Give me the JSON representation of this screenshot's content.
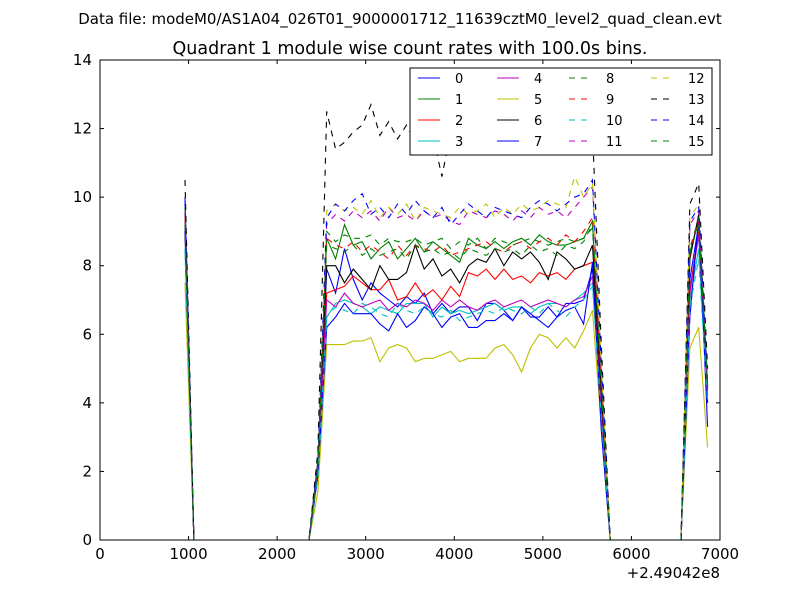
{
  "chart_data": {
    "type": "line",
    "suptitle": "Data file: modeM0/AS1A04_026T01_9000001712_11639cztM0_level2_quad_clean.evt",
    "title": "Quadrant 1 module wise count rates with 100.0s bins.",
    "xlabel": "",
    "ylabel": "",
    "x_offset_label": "+2.49042e8",
    "xlim": [
      0,
      7000
    ],
    "ylim": [
      0,
      14
    ],
    "xticks": [
      0,
      1000,
      2000,
      3000,
      4000,
      5000,
      6000,
      7000
    ],
    "yticks": [
      0,
      2,
      4,
      6,
      8,
      10,
      12,
      14
    ],
    "grid": false,
    "legend_position": "top-right",
    "legend_columns": 4,
    "x": [
      960,
      1060,
      2360,
      2460,
      2560,
      2660,
      2760,
      2860,
      2960,
      3060,
      3160,
      3260,
      3360,
      3460,
      3560,
      3660,
      3760,
      3860,
      3960,
      4060,
      4160,
      4260,
      4360,
      4460,
      4560,
      4660,
      4760,
      4860,
      4960,
      5060,
      5160,
      5260,
      5360,
      5460,
      5560,
      5660,
      5760,
      6560,
      6660,
      6760,
      6860
    ],
    "series": [
      {
        "name": "0",
        "color": "#0000ff",
        "dash": "solid",
        "values": [
          10.0,
          0,
          0,
          1.9,
          7.9,
          7.2,
          8.5,
          7.6,
          7.0,
          7.5,
          7.2,
          7.0,
          6.8,
          7.1,
          6.9,
          7.2,
          6.6,
          6.9,
          6.6,
          6.8,
          6.8,
          6.4,
          6.9,
          6.9,
          6.7,
          6.4,
          6.8,
          6.5,
          6.5,
          6.8,
          6.5,
          6.9,
          6.9,
          7.0,
          7.9,
          3.5,
          0,
          0,
          7.6,
          9.2,
          4.0
        ]
      },
      {
        "name": "1",
        "color": "#008000",
        "dash": "solid",
        "values": [
          9.3,
          0,
          0,
          2.1,
          8.8,
          8.2,
          9.2,
          8.6,
          8.7,
          8.2,
          8.5,
          8.7,
          8.2,
          8.5,
          8.8,
          8.4,
          8.7,
          8.5,
          8.3,
          8.1,
          8.8,
          8.6,
          8.5,
          8.7,
          8.5,
          8.7,
          8.8,
          8.6,
          8.9,
          8.7,
          8.6,
          8.6,
          8.7,
          8.8,
          9.3,
          4.5,
          0,
          0,
          8.4,
          9.3,
          4.4
        ]
      },
      {
        "name": "2",
        "color": "#ff0000",
        "dash": "solid",
        "values": [
          9.5,
          0,
          0,
          2.0,
          7.2,
          7.3,
          7.4,
          7.7,
          7.5,
          7.3,
          7.3,
          7.6,
          7.0,
          7.1,
          7.5,
          7.1,
          7.3,
          7.0,
          7.4,
          7.1,
          7.8,
          7.7,
          7.9,
          7.6,
          7.9,
          7.6,
          7.7,
          7.5,
          7.8,
          7.7,
          7.8,
          7.6,
          7.9,
          8.0,
          8.1,
          4.1,
          0,
          0,
          7.3,
          9.0,
          4.2
        ]
      },
      {
        "name": "3",
        "color": "#00bfbf",
        "dash": "solid",
        "values": [
          8.5,
          0,
          0,
          1.9,
          6.5,
          6.9,
          7.0,
          6.9,
          6.8,
          6.6,
          6.8,
          6.7,
          6.6,
          6.9,
          6.9,
          6.9,
          6.5,
          6.8,
          6.6,
          6.7,
          6.6,
          6.7,
          6.8,
          6.9,
          6.7,
          6.8,
          6.8,
          6.6,
          6.8,
          6.9,
          6.9,
          6.8,
          7.0,
          7.2,
          7.5,
          3.7,
          0,
          0,
          7.0,
          8.5,
          4.1
        ]
      },
      {
        "name": "4",
        "color": "#bf00bf",
        "dash": "solid",
        "values": [
          9.0,
          0,
          0,
          2.0,
          7.0,
          6.8,
          7.2,
          6.9,
          6.8,
          6.9,
          7.0,
          6.7,
          6.9,
          6.8,
          7.0,
          6.9,
          6.7,
          7.0,
          6.8,
          7.0,
          6.8,
          6.7,
          6.9,
          7.0,
          6.8,
          6.9,
          7.0,
          6.8,
          6.9,
          7.0,
          6.9,
          6.8,
          7.0,
          7.1,
          7.7,
          3.8,
          0,
          0,
          7.2,
          8.9,
          4.2
        ]
      },
      {
        "name": "5",
        "color": "#bfbf00",
        "dash": "solid",
        "values": [
          7.5,
          0,
          0,
          1.4,
          5.7,
          5.7,
          5.7,
          5.8,
          5.8,
          5.9,
          5.2,
          5.6,
          5.7,
          5.6,
          5.2,
          5.3,
          5.3,
          5.4,
          5.5,
          5.2,
          5.3,
          5.3,
          5.3,
          5.6,
          5.7,
          5.4,
          4.9,
          5.6,
          6.0,
          5.9,
          5.6,
          5.9,
          5.6,
          6.1,
          6.7,
          3.3,
          0,
          0,
          5.6,
          6.2,
          2.7
        ]
      },
      {
        "name": "6",
        "color": "#000000",
        "dash": "solid",
        "values": [
          9.0,
          0,
          0,
          2.3,
          8.0,
          8.0,
          7.5,
          7.9,
          7.6,
          7.3,
          8.0,
          7.6,
          7.6,
          7.8,
          8.6,
          7.9,
          8.2,
          7.7,
          7.9,
          7.5,
          8.0,
          8.2,
          8.1,
          8.5,
          8.0,
          8.4,
          8.2,
          8.4,
          8.1,
          7.6,
          8.4,
          8.2,
          7.9,
          8.0,
          8.6,
          4.3,
          0,
          0,
          8.2,
          9.5,
          4.5
        ]
      },
      {
        "name": "7",
        "color": "#0000ff",
        "dash": "solid",
        "values": [
          9.2,
          0,
          0,
          1.9,
          6.2,
          6.5,
          6.9,
          6.6,
          6.6,
          6.6,
          6.3,
          6.1,
          6.6,
          6.2,
          6.4,
          6.8,
          6.6,
          6.2,
          6.5,
          6.6,
          6.2,
          6.2,
          6.4,
          6.4,
          6.6,
          6.4,
          6.8,
          6.6,
          6.4,
          6.2,
          6.5,
          6.7,
          6.8,
          6.3,
          8.1,
          3.2,
          0,
          0,
          6.5,
          9.4,
          3.3
        ]
      },
      {
        "name": "8",
        "color": "#008000",
        "dash": "dashed",
        "values": [
          9.7,
          0,
          0,
          2.2,
          9.0,
          8.7,
          8.9,
          8.8,
          8.8,
          8.9,
          8.6,
          8.8,
          8.7,
          8.7,
          8.8,
          8.6,
          8.7,
          8.8,
          8.5,
          8.7,
          8.6,
          8.8,
          8.5,
          8.8,
          8.7,
          8.6,
          8.7,
          8.8,
          8.7,
          8.6,
          8.7,
          8.8,
          8.7,
          8.8,
          9.1,
          4.6,
          0,
          0,
          8.5,
          9.4,
          4.5
        ]
      },
      {
        "name": "9",
        "color": "#ff0000",
        "dash": "dashed",
        "values": [
          9.5,
          0,
          0,
          2.2,
          8.8,
          8.6,
          8.5,
          8.7,
          8.4,
          8.6,
          8.4,
          8.2,
          8.6,
          8.3,
          8.6,
          8.5,
          8.4,
          8.6,
          8.3,
          8.4,
          8.5,
          8.6,
          8.7,
          8.5,
          8.4,
          8.6,
          8.7,
          8.5,
          8.7,
          8.8,
          8.6,
          8.9,
          8.7,
          9.0,
          9.4,
          4.6,
          0,
          0,
          8.5,
          9.3,
          4.5
        ]
      },
      {
        "name": "10",
        "color": "#00bfbf",
        "dash": "dashed",
        "values": [
          8.4,
          0,
          0,
          1.8,
          6.5,
          6.8,
          6.7,
          6.6,
          6.9,
          6.8,
          6.6,
          6.5,
          6.9,
          6.7,
          6.6,
          6.8,
          6.6,
          6.5,
          6.7,
          6.4,
          6.5,
          6.6,
          6.7,
          6.6,
          6.8,
          6.7,
          6.6,
          6.8,
          6.6,
          6.9,
          6.7,
          6.5,
          6.8,
          7.0,
          7.4,
          3.6,
          0,
          0,
          6.8,
          8.2,
          4.0
        ]
      },
      {
        "name": "11",
        "color": "#bf00bf",
        "dash": "dashed",
        "values": [
          9.6,
          0,
          0,
          2.1,
          9.2,
          9.5,
          9.3,
          9.6,
          9.4,
          9.6,
          9.3,
          9.7,
          9.4,
          9.5,
          9.3,
          9.6,
          9.4,
          9.5,
          9.3,
          9.2,
          9.6,
          9.5,
          9.4,
          9.6,
          9.5,
          9.3,
          9.6,
          9.4,
          9.7,
          9.5,
          9.6,
          9.4,
          9.7,
          10.0,
          10.3,
          5.0,
          0,
          0,
          9.2,
          9.6,
          4.6
        ]
      },
      {
        "name": "12",
        "color": "#bfbf00",
        "dash": "dashed",
        "values": [
          9.9,
          0,
          0,
          2.3,
          9.6,
          9.8,
          9.6,
          9.7,
          9.5,
          9.9,
          9.4,
          9.7,
          9.5,
          9.8,
          9.3,
          9.7,
          9.6,
          9.5,
          9.4,
          9.7,
          9.5,
          9.6,
          9.8,
          9.4,
          9.7,
          9.5,
          9.8,
          9.6,
          9.7,
          9.9,
          9.8,
          9.7,
          10.6,
          10.0,
          10.4,
          5.1,
          0,
          0,
          9.4,
          9.8,
          4.7
        ]
      },
      {
        "name": "13",
        "color": "#000000",
        "dash": "dashed",
        "values": [
          10.5,
          0,
          0,
          2.6,
          12.5,
          11.4,
          11.6,
          11.9,
          12.1,
          12.7,
          11.8,
          12.2,
          11.7,
          12.1,
          11.6,
          11.8,
          11.8,
          10.6,
          11.9,
          11.6,
          12.0,
          11.9,
          12.1,
          11.8,
          12.3,
          11.9,
          11.8,
          11.5,
          12.0,
          11.7,
          12.2,
          11.9,
          12.6,
          11.4,
          11.9,
          5.7,
          0,
          0,
          9.8,
          10.4,
          5.0
        ]
      },
      {
        "name": "14",
        "color": "#0000ff",
        "dash": "dashed",
        "values": [
          9.9,
          0,
          0,
          2.3,
          9.4,
          9.8,
          9.6,
          9.9,
          10.1,
          9.5,
          9.7,
          9.4,
          9.8,
          9.5,
          9.9,
          9.6,
          9.4,
          9.7,
          9.2,
          9.5,
          9.8,
          9.6,
          9.4,
          9.7,
          9.6,
          9.5,
          9.4,
          9.7,
          9.9,
          9.8,
          9.6,
          9.8,
          10.0,
          10.1,
          10.5,
          5.1,
          0,
          0,
          9.3,
          9.7,
          4.6
        ]
      },
      {
        "name": "15",
        "color": "#008000",
        "dash": "dashed",
        "values": [
          9.2,
          0,
          0,
          2.1,
          8.6,
          8.5,
          8.4,
          8.6,
          8.3,
          8.5,
          8.3,
          8.4,
          8.5,
          8.2,
          8.6,
          8.4,
          8.5,
          8.3,
          8.4,
          8.2,
          8.5,
          8.4,
          8.3,
          8.5,
          8.4,
          8.5,
          8.3,
          8.6,
          8.4,
          8.5,
          8.3,
          8.6,
          8.5,
          8.7,
          9.2,
          4.5,
          0,
          0,
          8.4,
          9.2,
          4.4
        ]
      }
    ]
  }
}
